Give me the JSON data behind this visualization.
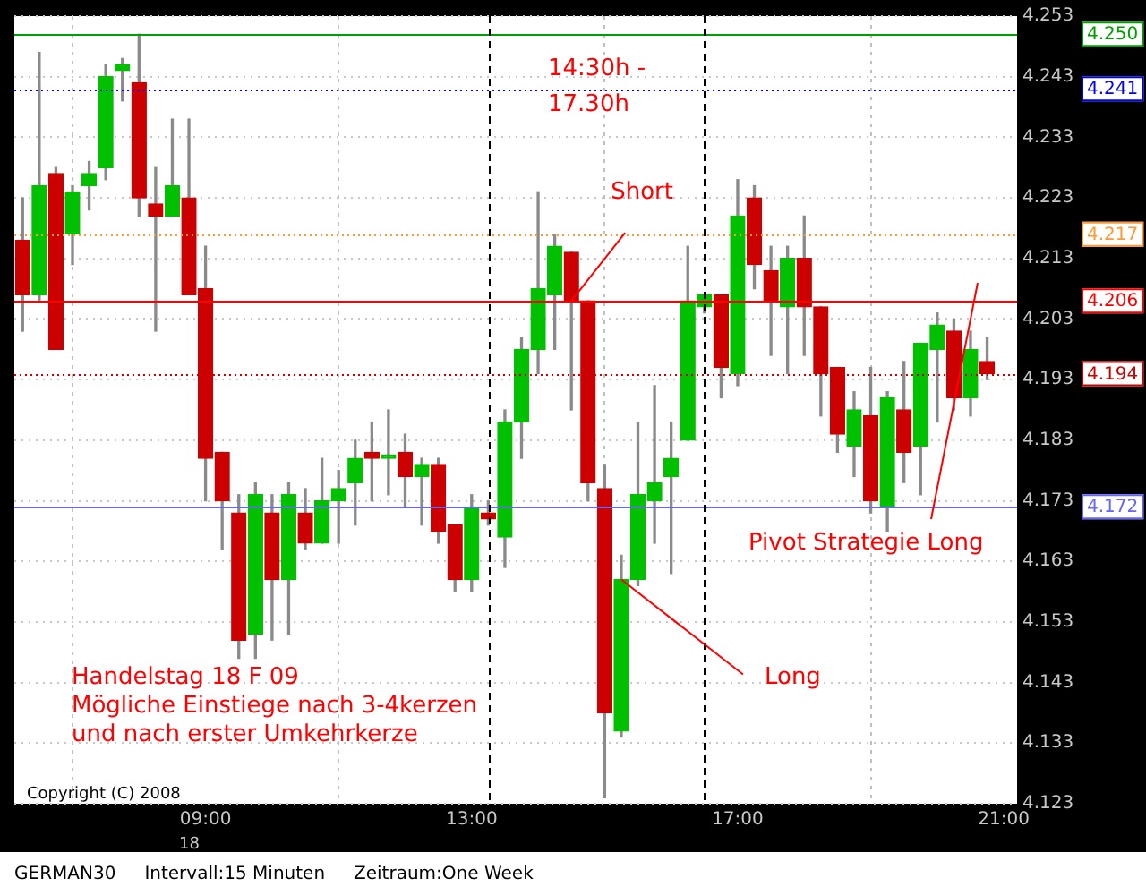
{
  "chart_data": {
    "type": "candlestick",
    "x": [
      6.25,
      6.5,
      6.75,
      7,
      7.25,
      7.5,
      7.75,
      8,
      8.25,
      8.5,
      8.75,
      9,
      9.25,
      9.5,
      9.75,
      10,
      10.25,
      10.5,
      10.75,
      11,
      11.25,
      11.5,
      11.75,
      12,
      12.25,
      12.5,
      12.75,
      13,
      13.25,
      13.5,
      13.75,
      14,
      14.25,
      14.5,
      14.75,
      15,
      15.25,
      15.5,
      15.75,
      16,
      16.25,
      16.5,
      16.75,
      17,
      17.25,
      17.5,
      17.75,
      18,
      18.25,
      18.5,
      18.75,
      19,
      19.25,
      19.5,
      19.75,
      20,
      20.25,
      20.5,
      20.75
    ],
    "ohlc": [
      [
        4.216,
        4.223,
        4.201,
        4.207
      ],
      [
        4.207,
        4.247,
        4.206,
        4.225
      ],
      [
        4.227,
        4.228,
        4.198,
        4.198
      ],
      [
        4.217,
        4.225,
        4.212,
        4.224
      ],
      [
        4.225,
        4.229,
        4.221,
        4.227
      ],
      [
        4.228,
        4.245,
        4.226,
        4.243
      ],
      [
        4.244,
        4.246,
        4.239,
        4.245
      ],
      [
        4.242,
        4.25,
        4.22,
        4.223
      ],
      [
        4.222,
        4.228,
        4.201,
        4.22
      ],
      [
        4.22,
        4.236,
        4.22,
        4.225
      ],
      [
        4.223,
        4.236,
        4.207,
        4.207
      ],
      [
        4.208,
        4.215,
        4.173,
        4.18
      ],
      [
        4.181,
        4.181,
        4.165,
        4.173
      ],
      [
        4.171,
        4.174,
        4.147,
        4.15
      ],
      [
        4.151,
        4.176,
        4.147,
        4.174
      ],
      [
        4.171,
        4.174,
        4.15,
        4.16
      ],
      [
        4.16,
        4.176,
        4.151,
        4.174
      ],
      [
        4.171,
        4.175,
        4.165,
        4.166
      ],
      [
        4.166,
        4.18,
        4.166,
        4.173
      ],
      [
        4.173,
        4.178,
        4.166,
        4.175
      ],
      [
        4.176,
        4.183,
        4.169,
        4.18
      ],
      [
        4.181,
        4.186,
        4.173,
        4.18
      ],
      [
        4.18,
        4.188,
        4.174,
        4.18
      ],
      [
        4.181,
        4.184,
        4.172,
        4.177
      ],
      [
        4.177,
        4.18,
        4.169,
        4.179
      ],
      [
        4.179,
        4.18,
        4.166,
        4.168
      ],
      [
        4.169,
        4.169,
        4.158,
        4.16
      ],
      [
        4.16,
        4.174,
        4.158,
        4.172
      ],
      [
        4.171,
        4.173,
        4.169,
        4.17
      ],
      [
        4.167,
        4.188,
        4.162,
        4.186
      ],
      [
        4.186,
        4.2,
        4.18,
        4.198
      ],
      [
        4.198,
        4.224,
        4.194,
        4.208
      ],
      [
        4.207,
        4.217,
        4.198,
        4.215
      ],
      [
        4.214,
        4.214,
        4.188,
        4.206
      ],
      [
        4.206,
        4.206,
        4.173,
        4.176
      ],
      [
        4.175,
        4.179,
        4.124,
        4.138
      ],
      [
        4.135,
        4.164,
        4.134,
        4.16
      ],
      [
        4.16,
        4.186,
        4.159,
        4.174
      ],
      [
        4.173,
        4.192,
        4.166,
        4.176
      ],
      [
        4.177,
        4.186,
        4.161,
        4.18
      ],
      [
        4.183,
        4.215,
        4.183,
        4.206
      ],
      [
        4.205,
        4.207,
        4.204,
        4.207
      ],
      [
        4.207,
        4.207,
        4.19,
        4.195
      ],
      [
        4.194,
        4.226,
        4.192,
        4.22
      ],
      [
        4.223,
        4.225,
        4.208,
        4.212
      ],
      [
        4.211,
        4.215,
        4.197,
        4.206
      ],
      [
        4.205,
        4.215,
        4.194,
        4.213
      ],
      [
        4.213,
        4.22,
        4.197,
        4.205
      ],
      [
        4.205,
        4.205,
        4.187,
        4.194
      ],
      [
        4.195,
        4.195,
        4.181,
        4.184
      ],
      [
        4.182,
        4.191,
        4.177,
        4.188
      ],
      [
        4.187,
        4.195,
        4.171,
        4.173
      ],
      [
        4.172,
        4.191,
        4.168,
        4.19
      ],
      [
        4.188,
        4.196,
        4.176,
        4.181
      ],
      [
        4.182,
        4.199,
        4.174,
        4.199
      ],
      [
        4.198,
        4.204,
        4.186,
        4.202
      ],
      [
        4.201,
        4.203,
        4.188,
        4.19
      ],
      [
        4.19,
        4.201,
        4.187,
        4.198
      ],
      [
        4.196,
        4.2,
        4.193,
        4.194
      ]
    ],
    "colors": [
      "#cc0000",
      "#00c000",
      "#cc0000",
      "#00c000",
      "#00c000",
      "#00c000",
      "#00c000",
      "#cc0000",
      "#cc0000",
      "#00c000",
      "#cc0000",
      "#cc0000",
      "#cc0000",
      "#cc0000",
      "#00c000",
      "#cc0000",
      "#00c000",
      "#cc0000",
      "#00c000",
      "#00c000",
      "#00c000",
      "#cc0000",
      "#00c000",
      "#cc0000",
      "#00c000",
      "#cc0000",
      "#cc0000",
      "#00c000",
      "#cc0000",
      "#00c000",
      "#00c000",
      "#00c000",
      "#00c000",
      "#cc0000",
      "#cc0000",
      "#cc0000",
      "#00c000",
      "#00c000",
      "#00c000",
      "#00c000",
      "#00c000",
      "#00c000",
      "#cc0000",
      "#00c000",
      "#cc0000",
      "#cc0000",
      "#00c000",
      "#cc0000",
      "#cc0000",
      "#cc0000",
      "#00c000",
      "#cc0000",
      "#00c000",
      "#cc0000",
      "#00c000",
      "#00c000",
      "#cc0000",
      "#00c000",
      "#cc0000"
    ],
    "xlim": [
      6.125,
      21.2
    ],
    "xticks": [
      {
        "value": 9,
        "label": "09:00"
      },
      {
        "value": 13,
        "label": "13:00"
      },
      {
        "value": 17,
        "label": "17:00"
      },
      {
        "value": 21,
        "label": "21:00"
      }
    ],
    "ylim": [
      4.123,
      4.253
    ],
    "yticks": [
      4.123,
      4.133,
      4.143,
      4.153,
      4.163,
      4.173,
      4.183,
      4.193,
      4.203,
      4.213,
      4.223,
      4.233,
      4.243,
      4.253
    ],
    "grid": true,
    "ref_lines": [
      {
        "axis": "y",
        "value": 4.25,
        "label": "4.250",
        "color": "#00a000",
        "line_style": "solid"
      },
      {
        "axis": "y",
        "value": 4.241,
        "label": "4.241",
        "color": "#0000ff",
        "line_style": "dotted"
      },
      {
        "axis": "y",
        "value": 4.217,
        "label": "4.217",
        "color": "#ff9933",
        "line_style": "dotted"
      },
      {
        "axis": "y",
        "value": 4.206,
        "label": "4.206",
        "color": "#ff0000",
        "line_style": "solid"
      },
      {
        "axis": "y",
        "value": 4.194,
        "label": "4.194",
        "color": "#cc0000",
        "line_style": "dotted"
      },
      {
        "axis": "y",
        "value": 4.172,
        "label": "4.172",
        "color": "#6666ff",
        "line_style": "solid"
      },
      {
        "axis": "x",
        "value": 13.25,
        "color": "#000000",
        "line_style": "dashed"
      },
      {
        "axis": "x",
        "value": 16.5,
        "color": "#000000",
        "line_style": "dashed"
      }
    ],
    "annotations": [
      "14:30h - 17.30h",
      {
        "text": "Short",
        "x": 14.5,
        "y": 4.206
      },
      {
        "text": "Long",
        "x": 15.25,
        "y": 4.16
      },
      "Pivot Strategie Long",
      "Handelstag 18 F 09",
      "Mögliche Einstiege nach 3-4kerzen",
      "und nach erster Umkehrkerze",
      "Copyright (C) 2008",
      "18",
      "GERMAN30",
      "Intervall:15 Minuten",
      "Zeitraum:One Week"
    ]
  }
}
